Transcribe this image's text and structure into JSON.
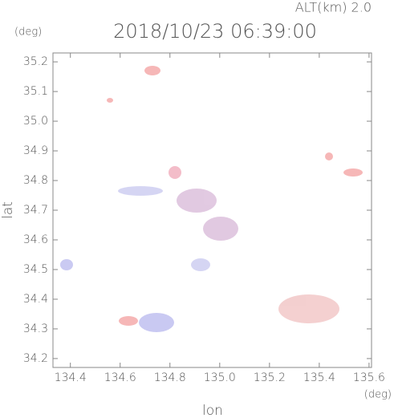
{
  "chart_data": {
    "type": "map",
    "title": "2018/10/23 06:39:00",
    "subtitle": "ALT(km) 2.0",
    "y_unit": "(deg)",
    "x_unit": "(deg)",
    "x_label": "lon",
    "y_label": "lat",
    "xlim": [
      134.33,
      135.61
    ],
    "ylim": [
      34.17,
      35.23
    ],
    "xticks": [
      134.4,
      134.6,
      134.8,
      {
        "value": 135,
        "label": "135.0"
      },
      135.2,
      135.4,
      135.6
    ],
    "yticks": [
      34.2,
      34.3,
      34.4,
      34.5,
      34.6,
      34.7,
      34.8,
      34.9,
      {
        "value": 35,
        "label": "35.0"
      },
      35.1,
      35.2
    ]
  }
}
